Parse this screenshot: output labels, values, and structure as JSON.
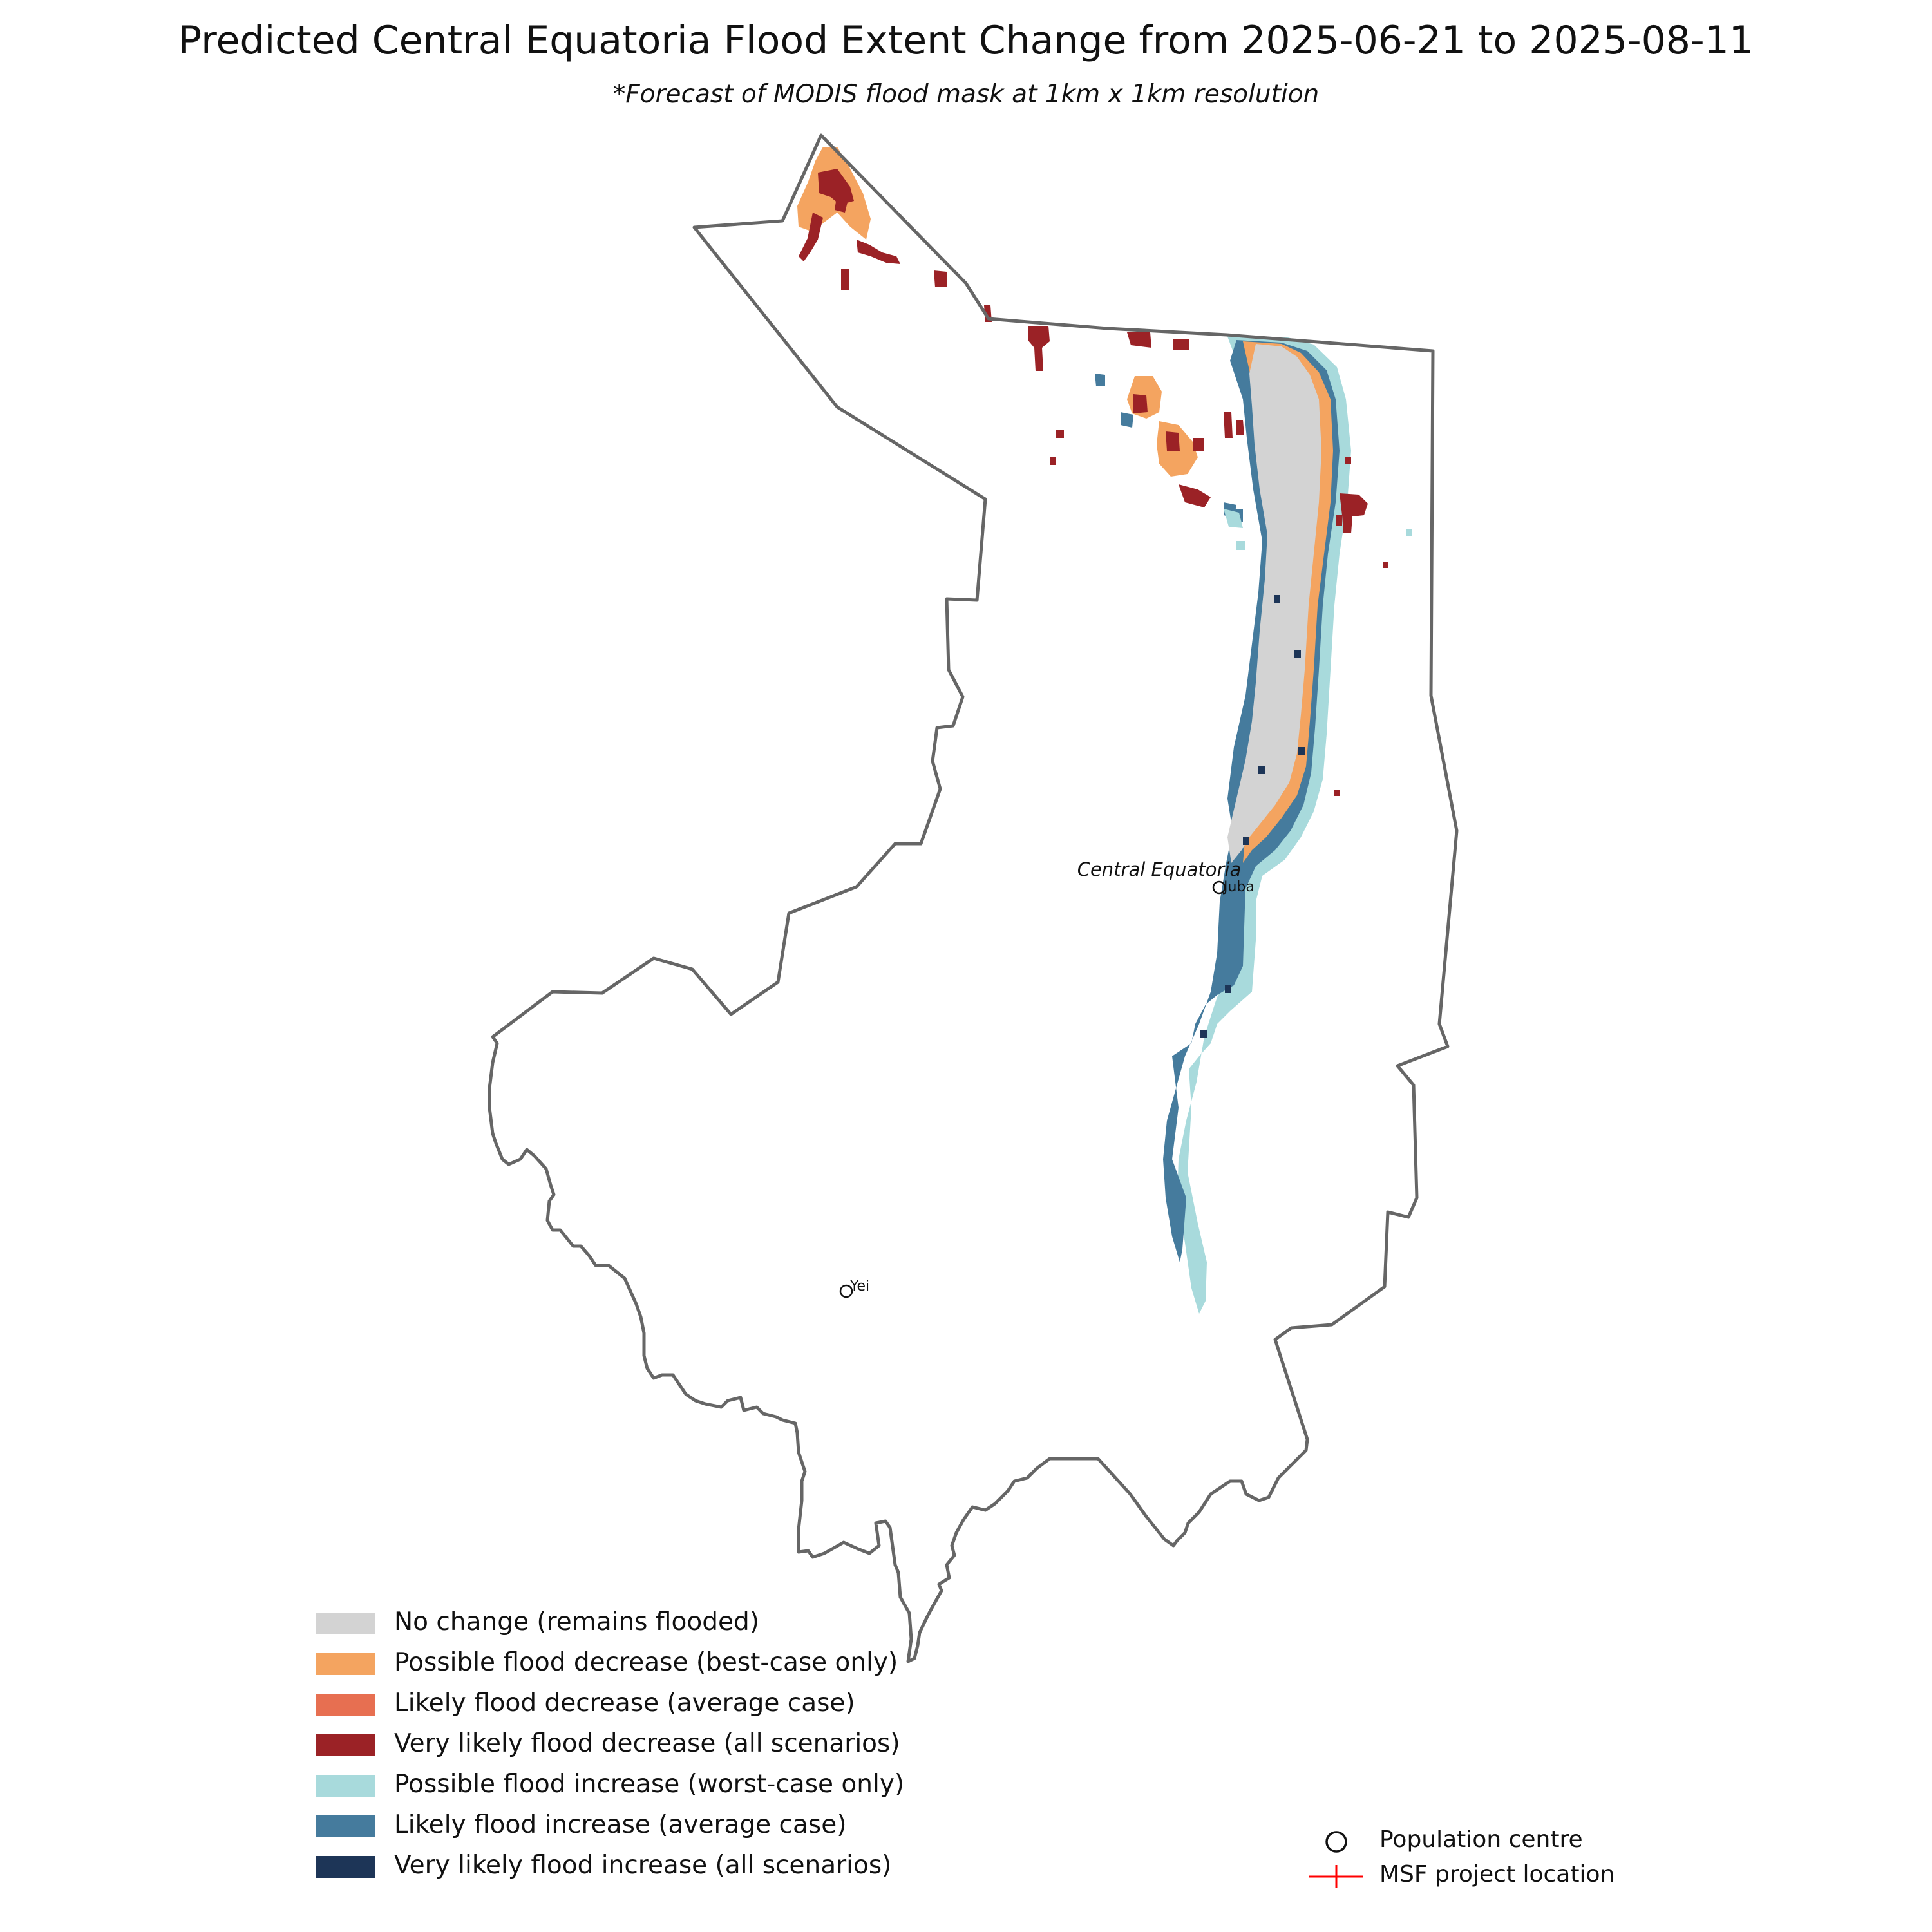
{
  "title": "Predicted Central Equatoria Flood Extent Change from 2025-06-21 to 2025-08-11",
  "subtitle": "*Forecast of MODIS flood mask at 1km x 1km resolution",
  "map": {
    "region_label": "Central Equatoria",
    "outline_color": "#666666",
    "places": [
      {
        "name": "Juba",
        "symbol": "population-centre"
      },
      {
        "name": "Yei",
        "symbol": "population-centre"
      }
    ]
  },
  "legend": {
    "classes": [
      {
        "label": "No change (remains flooded)",
        "color": "#d3d3d3"
      },
      {
        "label": "Possible flood decrease (best-case only)",
        "color": "#f4a460"
      },
      {
        "label": "Likely flood decrease (average case)",
        "color": "#e76f51"
      },
      {
        "label": "Very likely flood decrease (all scenarios)",
        "color": "#9b2226"
      },
      {
        "label": "Possible flood increase (worst-case only)",
        "color": "#a8dadc"
      },
      {
        "label": "Likely flood increase (average case)",
        "color": "#457b9d"
      },
      {
        "label": "Very likely flood increase (all scenarios)",
        "color": "#1d3557"
      }
    ],
    "symbols": [
      {
        "label": "Population centre",
        "icon": "circle-outline-icon"
      },
      {
        "label": "MSF project location",
        "icon": "red-cross-icon",
        "color": "#ff0000"
      }
    ]
  }
}
